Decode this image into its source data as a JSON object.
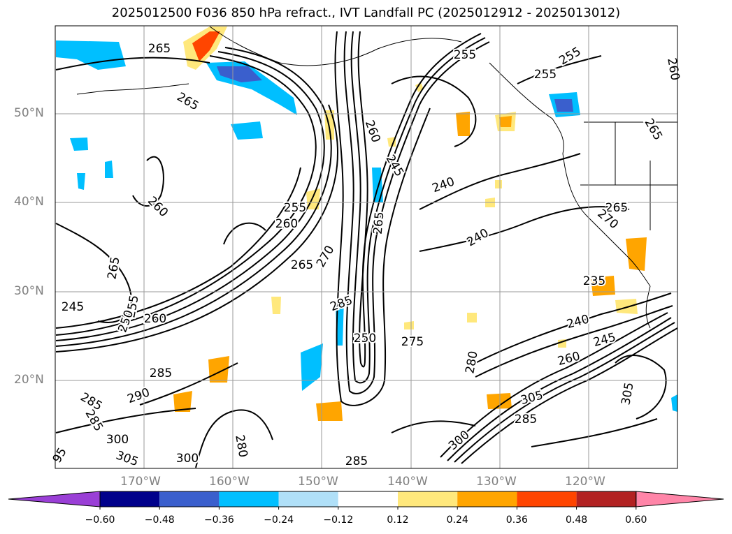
{
  "title": "2025012500 F036 850 hPa refract., IVT Landfall PC (2025012912 - 2025013012)",
  "map": {
    "lon_ticks": [
      "170°W",
      "160°W",
      "150°W",
      "140°W",
      "130°W",
      "120°W"
    ],
    "lat_ticks": [
      "50°N",
      "40°N",
      "30°N",
      "20°N"
    ],
    "gridlines": true,
    "contour_labels": [
      "265",
      "265",
      "260",
      "265",
      "245",
      "255",
      "250",
      "260",
      "285",
      "290",
      "285",
      "285",
      "300",
      "305",
      "95",
      "300",
      "280",
      "255",
      "260",
      "265",
      "270",
      "285",
      "250",
      "275",
      "285",
      "260",
      "245",
      "265",
      "240",
      "240",
      "255",
      "255",
      "255",
      "260",
      "265",
      "265",
      "270",
      "235",
      "240",
      "245",
      "260",
      "280",
      "300",
      "305",
      "285",
      "305"
    ]
  },
  "colorbar": {
    "labels": [
      "−0.60",
      "−0.48",
      "−0.36",
      "−0.24",
      "−0.12",
      "0.12",
      "0.24",
      "0.36",
      "0.48",
      "0.60"
    ],
    "colors": {
      "under": "#9a3fd6",
      "bins": [
        "#00008b",
        "#3a5fcd",
        "#00bfff",
        "#b0e0f8",
        "#ffffff",
        "#ffe87c",
        "#ffa500",
        "#ff4500",
        "#b22222"
      ],
      "over": "#ff85a8"
    }
  }
}
